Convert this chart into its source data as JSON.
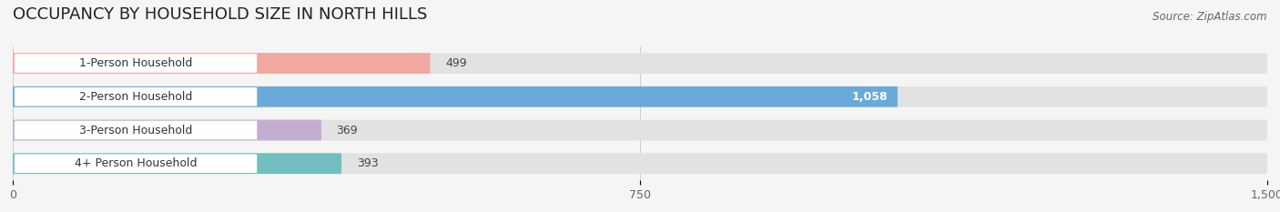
{
  "title": "OCCUPANCY BY HOUSEHOLD SIZE IN NORTH HILLS",
  "source": "Source: ZipAtlas.com",
  "categories": [
    "1-Person Household",
    "2-Person Household",
    "3-Person Household",
    "4+ Person Household"
  ],
  "values": [
    499,
    1058,
    369,
    393
  ],
  "bar_colors": [
    "#f0a8a0",
    "#6aaad8",
    "#c4aed0",
    "#72bfc0"
  ],
  "xlim": [
    0,
    1500
  ],
  "xticks": [
    0,
    750,
    1500
  ],
  "background_color": "#f5f5f5",
  "bar_bg_color": "#e2e2e2",
  "label_bg_color": "#ffffff",
  "title_fontsize": 13,
  "label_fontsize": 9,
  "value_fontsize": 9,
  "source_fontsize": 8.5
}
